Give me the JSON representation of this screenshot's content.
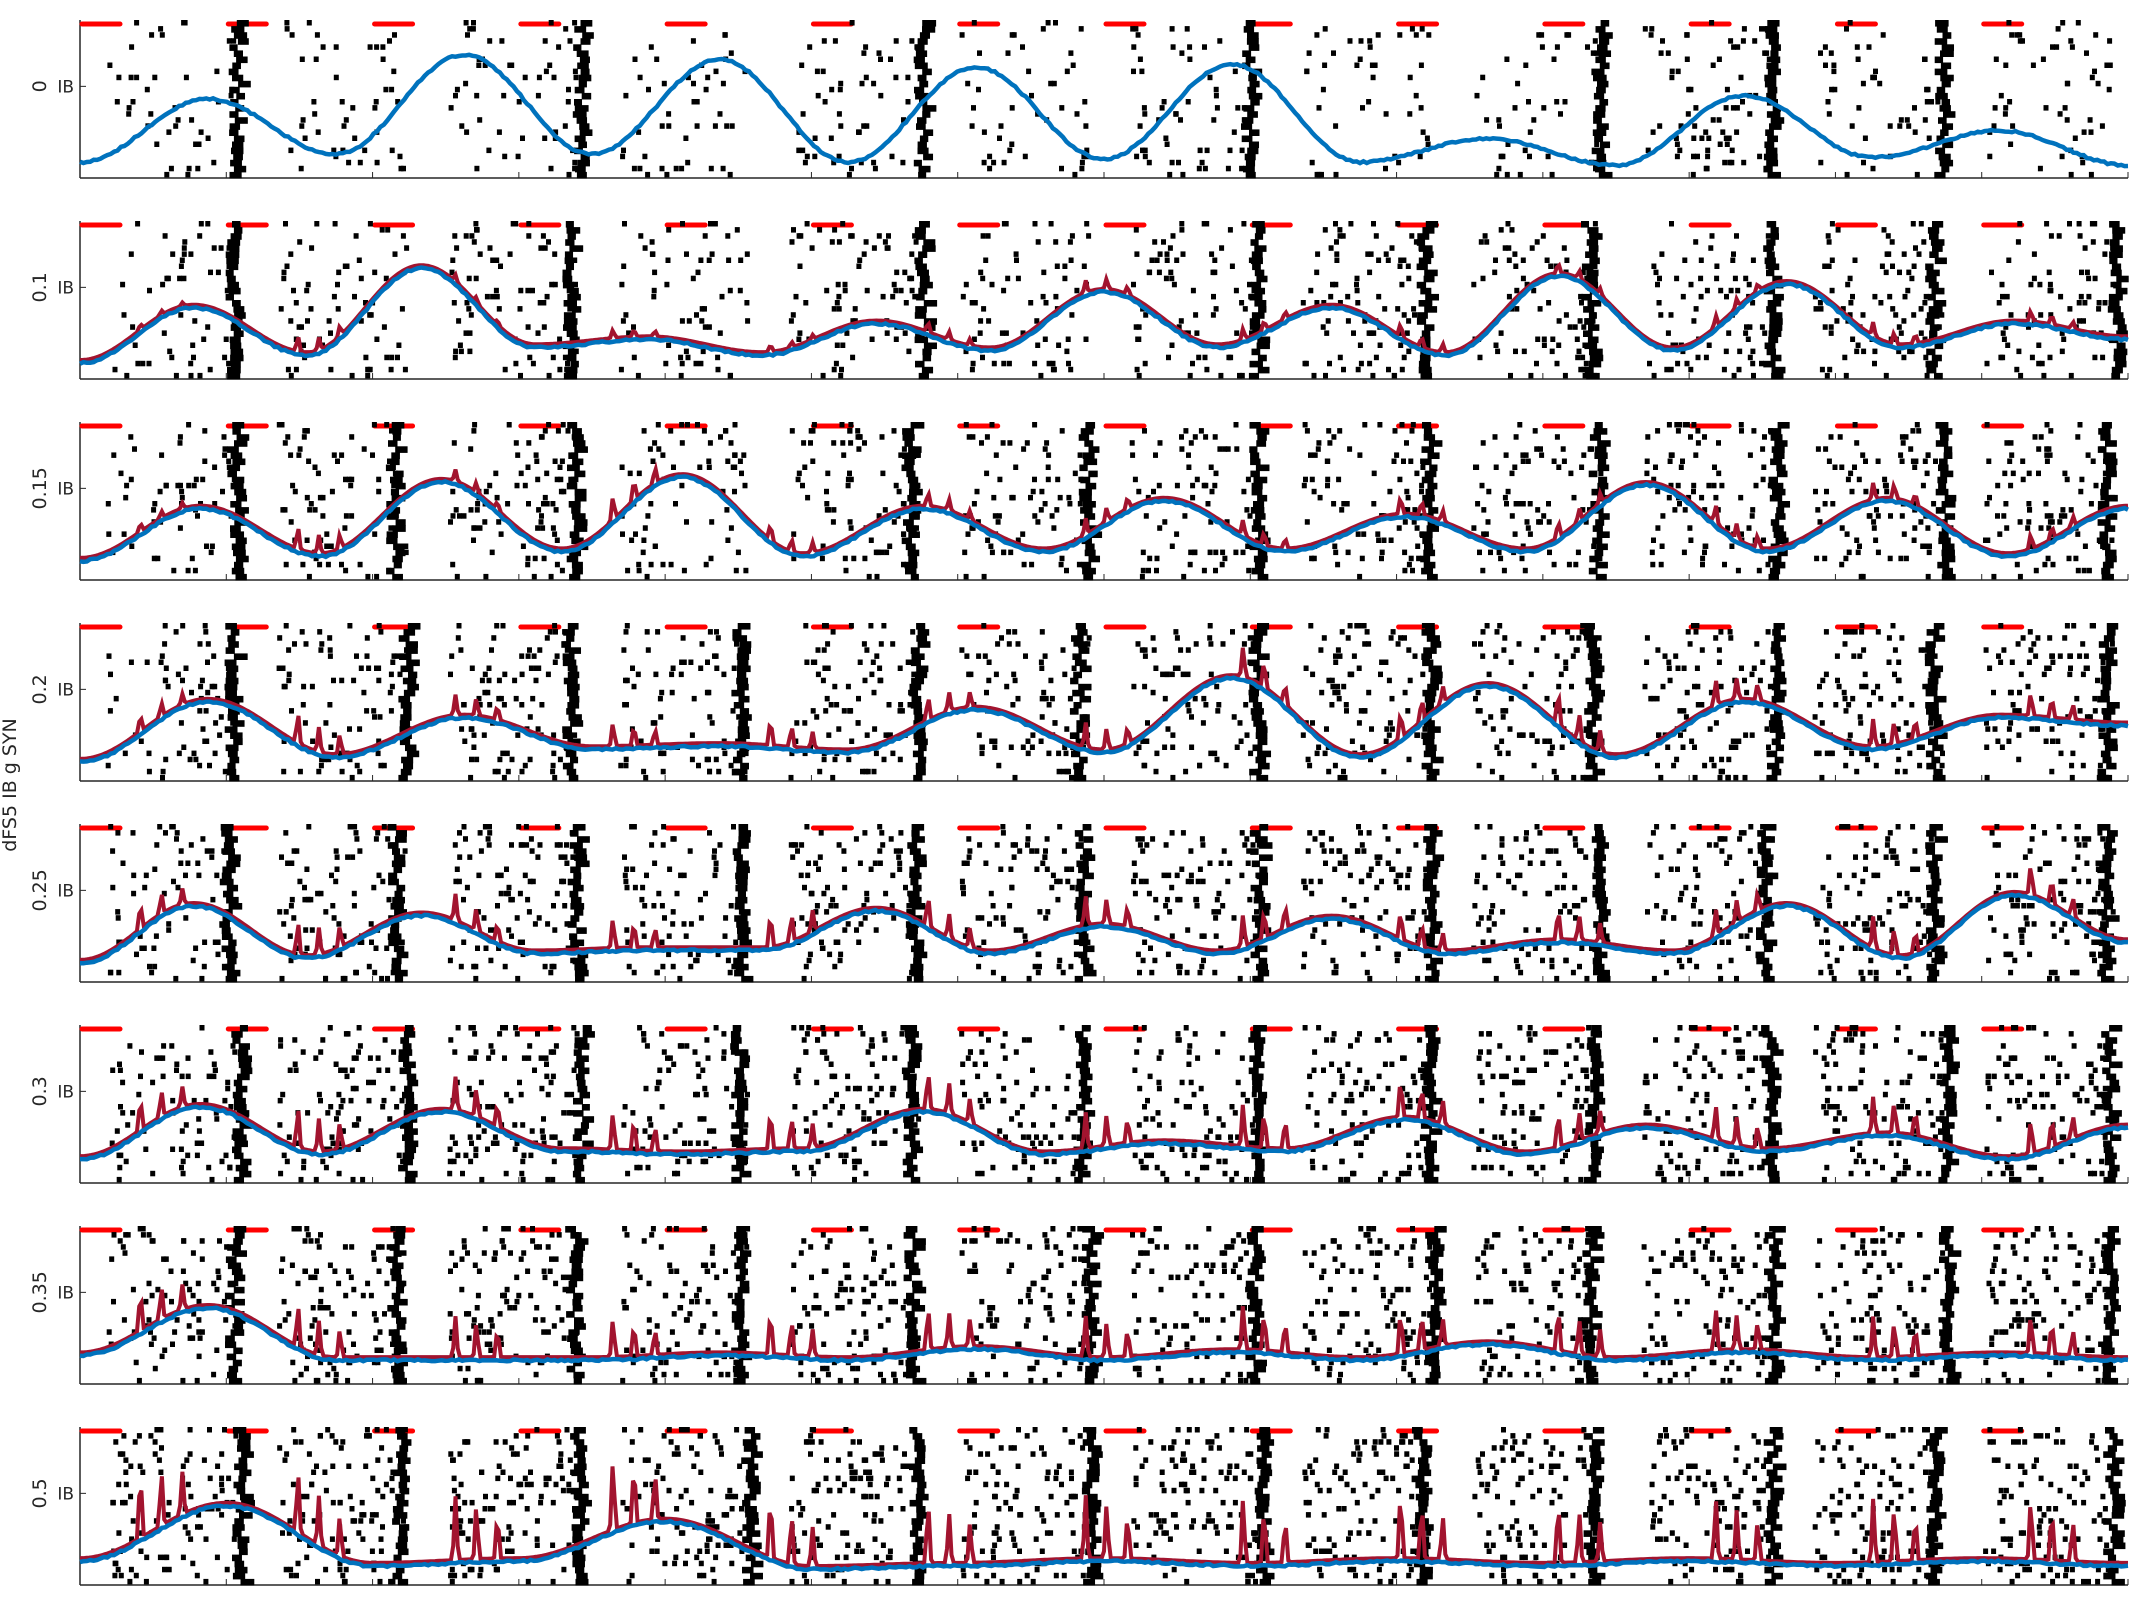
{
  "chart_data": {
    "type": "line",
    "ylabel": "dFS5 IB g SYN",
    "panel_tick_label": "IB",
    "panels": [
      {
        "label": "0",
        "g": 0,
        "raster": [
          0.02,
          0.06,
          0.12,
          0.05,
          0.1,
          0.06,
          0.15,
          0.04,
          0.03,
          0.3,
          0.05,
          0.12
        ],
        "red_amp": 0,
        "blue": [
          0.1,
          0.5,
          0.15,
          0.78,
          0.15,
          0.75,
          0.1,
          0.7,
          0.12,
          0.72,
          0.1,
          0.25,
          0.08,
          0.52,
          0.13,
          0.3,
          0.08
        ],
        "red_peaks": []
      },
      {
        "label": "0.1",
        "g": 0.1,
        "raster": [
          0.1,
          0.25,
          0.35,
          0.2,
          0.3,
          0.25,
          0.3,
          0.4,
          0.35,
          0.3,
          0.4,
          0.35
        ],
        "red_amp": 0.18,
        "blue": [
          0.1,
          0.45,
          0.15,
          0.7,
          0.2,
          0.25,
          0.15,
          0.35,
          0.18,
          0.55,
          0.2,
          0.45,
          0.15,
          0.65,
          0.18,
          0.6,
          0.2,
          0.35,
          0.25
        ],
        "red_peaks": [
          0.2,
          0.55,
          0.25,
          0.3,
          0.25,
          0.35,
          0.45,
          0.4,
          0.45,
          0.35,
          0.4,
          0.5,
          0.4
        ]
      },
      {
        "label": "0.15",
        "g": 0.15,
        "raster": [
          0.15,
          0.3,
          0.4,
          0.25,
          0.35,
          0.3,
          0.3,
          0.4,
          0.35,
          0.4,
          0.4,
          0.45
        ],
        "red_amp": 0.22,
        "blue": [
          0.12,
          0.45,
          0.15,
          0.62,
          0.18,
          0.65,
          0.15,
          0.45,
          0.18,
          0.5,
          0.18,
          0.4,
          0.18,
          0.6,
          0.18,
          0.5,
          0.15,
          0.45
        ],
        "red_peaks": [
          0.25,
          0.65,
          0.35,
          0.7,
          0.45,
          0.4,
          0.5,
          0.45,
          0.5,
          0.45,
          0.55,
          0.5,
          0.45
        ]
      },
      {
        "label": "0.2",
        "g": 0.2,
        "raster": [
          0.2,
          0.35,
          0.45,
          0.3,
          0.4,
          0.35,
          0.35,
          0.45,
          0.4,
          0.45,
          0.45,
          0.5
        ],
        "red_amp": 0.3,
        "blue": [
          0.12,
          0.5,
          0.15,
          0.4,
          0.2,
          0.22,
          0.18,
          0.45,
          0.18,
          0.65,
          0.15,
          0.6,
          0.15,
          0.5,
          0.2,
          0.4,
          0.35
        ],
        "red_peaks": [
          0.35,
          0.65,
          0.45,
          0.5,
          0.55,
          0.5,
          0.55,
          0.65,
          0.55,
          0.7,
          0.55,
          0.6,
          0.5
        ]
      },
      {
        "label": "0.25",
        "g": 0.25,
        "raster": [
          0.25,
          0.4,
          0.5,
          0.35,
          0.45,
          0.4,
          0.45,
          0.5,
          0.45,
          0.45,
          0.5,
          0.55
        ],
        "red_amp": 0.35,
        "blue": [
          0.12,
          0.48,
          0.15,
          0.42,
          0.18,
          0.2,
          0.2,
          0.45,
          0.18,
          0.35,
          0.18,
          0.4,
          0.18,
          0.25,
          0.18,
          0.48,
          0.15,
          0.55,
          0.25
        ],
        "red_peaks": [
          0.45,
          0.6,
          0.5,
          0.55,
          0.6,
          0.55,
          0.55,
          0.6,
          0.5,
          0.55,
          0.5,
          0.6,
          0.55
        ]
      },
      {
        "label": "0.3",
        "g": 0.3,
        "raster": [
          0.3,
          0.45,
          0.55,
          0.4,
          0.5,
          0.45,
          0.45,
          0.55,
          0.5,
          0.5,
          0.55,
          0.55
        ],
        "red_amp": 0.4,
        "blue": [
          0.15,
          0.48,
          0.18,
          0.45,
          0.2,
          0.18,
          0.2,
          0.45,
          0.18,
          0.25,
          0.2,
          0.4,
          0.18,
          0.35,
          0.2,
          0.3,
          0.15,
          0.35
        ],
        "red_peaks": [
          0.5,
          0.65,
          0.55,
          0.6,
          0.6,
          0.6,
          0.6,
          0.7,
          0.6,
          0.55,
          0.55,
          0.6,
          0.55
        ]
      },
      {
        "label": "0.35",
        "g": 0.35,
        "raster": [
          0.35,
          0.5,
          0.55,
          0.45,
          0.55,
          0.5,
          0.5,
          0.55,
          0.55,
          0.55,
          0.55,
          0.6
        ],
        "red_amp": 0.45,
        "blue": [
          0.18,
          0.48,
          0.15,
          0.15,
          0.15,
          0.18,
          0.15,
          0.22,
          0.15,
          0.2,
          0.15,
          0.25,
          0.15,
          0.2,
          0.15,
          0.18,
          0.15
        ],
        "red_peaks": [
          0.55,
          0.6,
          0.6,
          0.55,
          0.6,
          0.6,
          0.6,
          0.65,
          0.6,
          0.6,
          0.6,
          0.6,
          0.55
        ]
      },
      {
        "label": "0.5",
        "g": 0.5,
        "raster": [
          0.45,
          0.55,
          0.6,
          0.5,
          0.55,
          0.55,
          0.55,
          0.6,
          0.55,
          0.55,
          0.6,
          0.6
        ],
        "red_amp": 0.6,
        "blue": [
          0.15,
          0.5,
          0.12,
          0.15,
          0.4,
          0.1,
          0.12,
          0.15,
          0.12,
          0.15,
          0.12,
          0.15,
          0.12,
          0.15,
          0.12
        ],
        "red_peaks": [
          0.7,
          0.65,
          0.7,
          0.75,
          0.65,
          0.65,
          0.7,
          0.7,
          0.7,
          0.65,
          0.65,
          0.7,
          0.65
        ]
      }
    ],
    "red_stimulus_bars": 14,
    "grid": false
  }
}
